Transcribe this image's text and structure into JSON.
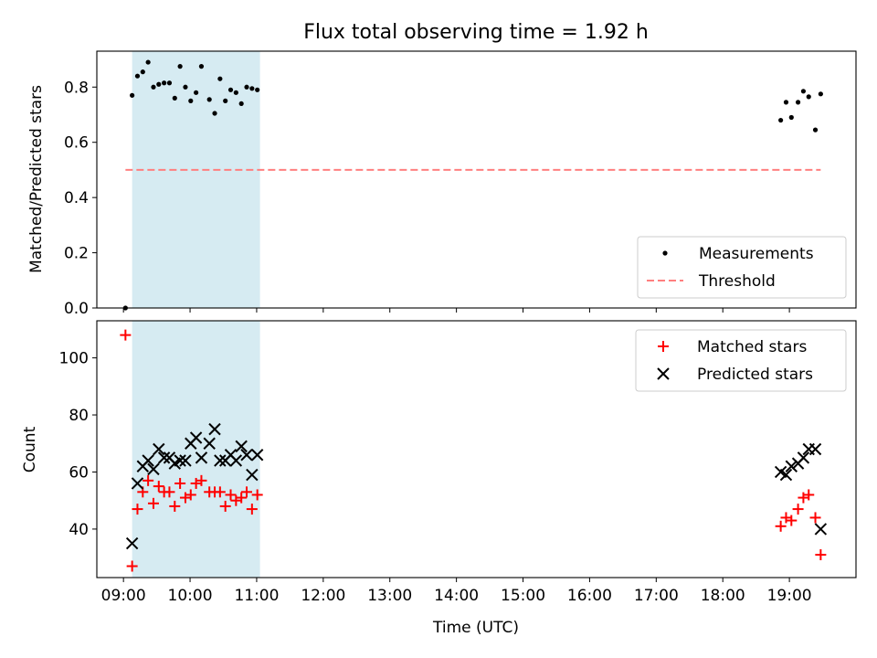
{
  "chart_data": [
    {
      "type": "scatter",
      "title": "Flux total observing time = 1.92 h",
      "xlabel": "",
      "ylabel": "Matched/Predicted stars",
      "ylim": [
        0.0,
        0.93
      ],
      "xlim": [
        8.6,
        20.0
      ],
      "x_unit": "hours UTC",
      "yticks": [
        0.0,
        0.2,
        0.4,
        0.6,
        0.8
      ],
      "ytick_labels": [
        "0.0",
        "0.2",
        "0.4",
        "0.6",
        "0.8"
      ],
      "shaded_span": {
        "x_start": 9.13,
        "x_end": 11.05,
        "color": "#add8e6"
      },
      "legend_position": "lower-right",
      "series": [
        {
          "name": "Measurements",
          "marker": "dot",
          "color": "#000000",
          "points": [
            [
              9.03,
              0.0
            ],
            [
              9.13,
              0.77
            ],
            [
              9.21,
              0.84
            ],
            [
              9.29,
              0.855
            ],
            [
              9.37,
              0.89
            ],
            [
              9.45,
              0.8
            ],
            [
              9.53,
              0.81
            ],
            [
              9.61,
              0.815
            ],
            [
              9.69,
              0.815
            ],
            [
              9.77,
              0.76
            ],
            [
              9.85,
              0.875
            ],
            [
              9.93,
              0.8
            ],
            [
              10.01,
              0.75
            ],
            [
              10.09,
              0.78
            ],
            [
              10.17,
              0.875
            ],
            [
              10.29,
              0.755
            ],
            [
              10.37,
              0.705
            ],
            [
              10.45,
              0.83
            ],
            [
              10.53,
              0.75
            ],
            [
              10.61,
              0.79
            ],
            [
              10.69,
              0.78
            ],
            [
              10.77,
              0.74
            ],
            [
              10.85,
              0.8
            ],
            [
              10.93,
              0.795
            ],
            [
              11.01,
              0.79
            ],
            [
              18.87,
              0.68
            ],
            [
              18.95,
              0.745
            ],
            [
              19.03,
              0.69
            ],
            [
              19.13,
              0.745
            ],
            [
              19.21,
              0.785
            ],
            [
              19.29,
              0.765
            ],
            [
              19.39,
              0.645
            ],
            [
              19.47,
              0.775
            ]
          ]
        },
        {
          "name": "Threshold",
          "marker": "dashed-line",
          "color": "#ff7f7f",
          "points": [
            [
              9.03,
              0.5
            ],
            [
              19.47,
              0.5
            ]
          ]
        }
      ]
    },
    {
      "type": "scatter",
      "title": "",
      "xlabel": "Time (UTC)",
      "ylabel": "Count",
      "ylim": [
        23,
        113
      ],
      "xlim": [
        8.6,
        20.0
      ],
      "x_unit": "hours UTC",
      "yticks": [
        40,
        60,
        80,
        100
      ],
      "ytick_labels": [
        "40",
        "60",
        "80",
        "100"
      ],
      "xticks": [
        9,
        10,
        11,
        12,
        13,
        14,
        15,
        16,
        17,
        18,
        19
      ],
      "xtick_labels": [
        "09:00",
        "10:00",
        "11:00",
        "12:00",
        "13:00",
        "14:00",
        "15:00",
        "16:00",
        "17:00",
        "18:00",
        "19:00"
      ],
      "shaded_span": {
        "x_start": 9.13,
        "x_end": 11.05,
        "color": "#add8e6"
      },
      "legend_position": "upper-right",
      "series": [
        {
          "name": "Matched stars",
          "marker": "plus",
          "color": "#ff0000",
          "points": [
            [
              9.03,
              108
            ],
            [
              9.13,
              27
            ],
            [
              9.21,
              47
            ],
            [
              9.29,
              53
            ],
            [
              9.37,
              57
            ],
            [
              9.45,
              49
            ],
            [
              9.53,
              55
            ],
            [
              9.61,
              53
            ],
            [
              9.69,
              53
            ],
            [
              9.77,
              48
            ],
            [
              9.85,
              56
            ],
            [
              9.93,
              51
            ],
            [
              10.01,
              52
            ],
            [
              10.09,
              56
            ],
            [
              10.17,
              57
            ],
            [
              10.29,
              53
            ],
            [
              10.37,
              53
            ],
            [
              10.45,
              53
            ],
            [
              10.53,
              48
            ],
            [
              10.61,
              52
            ],
            [
              10.69,
              50
            ],
            [
              10.77,
              51
            ],
            [
              10.85,
              53
            ],
            [
              10.93,
              47
            ],
            [
              11.01,
              52
            ],
            [
              18.87,
              41
            ],
            [
              18.95,
              44
            ],
            [
              19.03,
              43
            ],
            [
              19.13,
              47
            ],
            [
              19.21,
              51
            ],
            [
              19.29,
              52
            ],
            [
              19.39,
              44
            ],
            [
              19.47,
              31
            ]
          ]
        },
        {
          "name": "Predicted stars",
          "marker": "x",
          "color": "#000000",
          "points": [
            [
              9.13,
              35
            ],
            [
              9.21,
              56
            ],
            [
              9.29,
              62
            ],
            [
              9.37,
              64
            ],
            [
              9.45,
              61
            ],
            [
              9.53,
              68
            ],
            [
              9.61,
              65
            ],
            [
              9.69,
              65
            ],
            [
              9.77,
              63
            ],
            [
              9.85,
              64
            ],
            [
              9.93,
              64
            ],
            [
              10.01,
              70
            ],
            [
              10.09,
              72
            ],
            [
              10.17,
              65
            ],
            [
              10.29,
              70
            ],
            [
              10.37,
              75
            ],
            [
              10.45,
              64
            ],
            [
              10.53,
              64
            ],
            [
              10.61,
              66
            ],
            [
              10.69,
              64
            ],
            [
              10.77,
              69
            ],
            [
              10.85,
              66
            ],
            [
              10.93,
              59
            ],
            [
              11.01,
              66
            ],
            [
              18.87,
              60
            ],
            [
              18.95,
              59
            ],
            [
              19.03,
              62
            ],
            [
              19.13,
              63
            ],
            [
              19.21,
              65
            ],
            [
              19.29,
              68
            ],
            [
              19.39,
              68
            ],
            [
              19.47,
              40
            ]
          ]
        }
      ]
    }
  ]
}
